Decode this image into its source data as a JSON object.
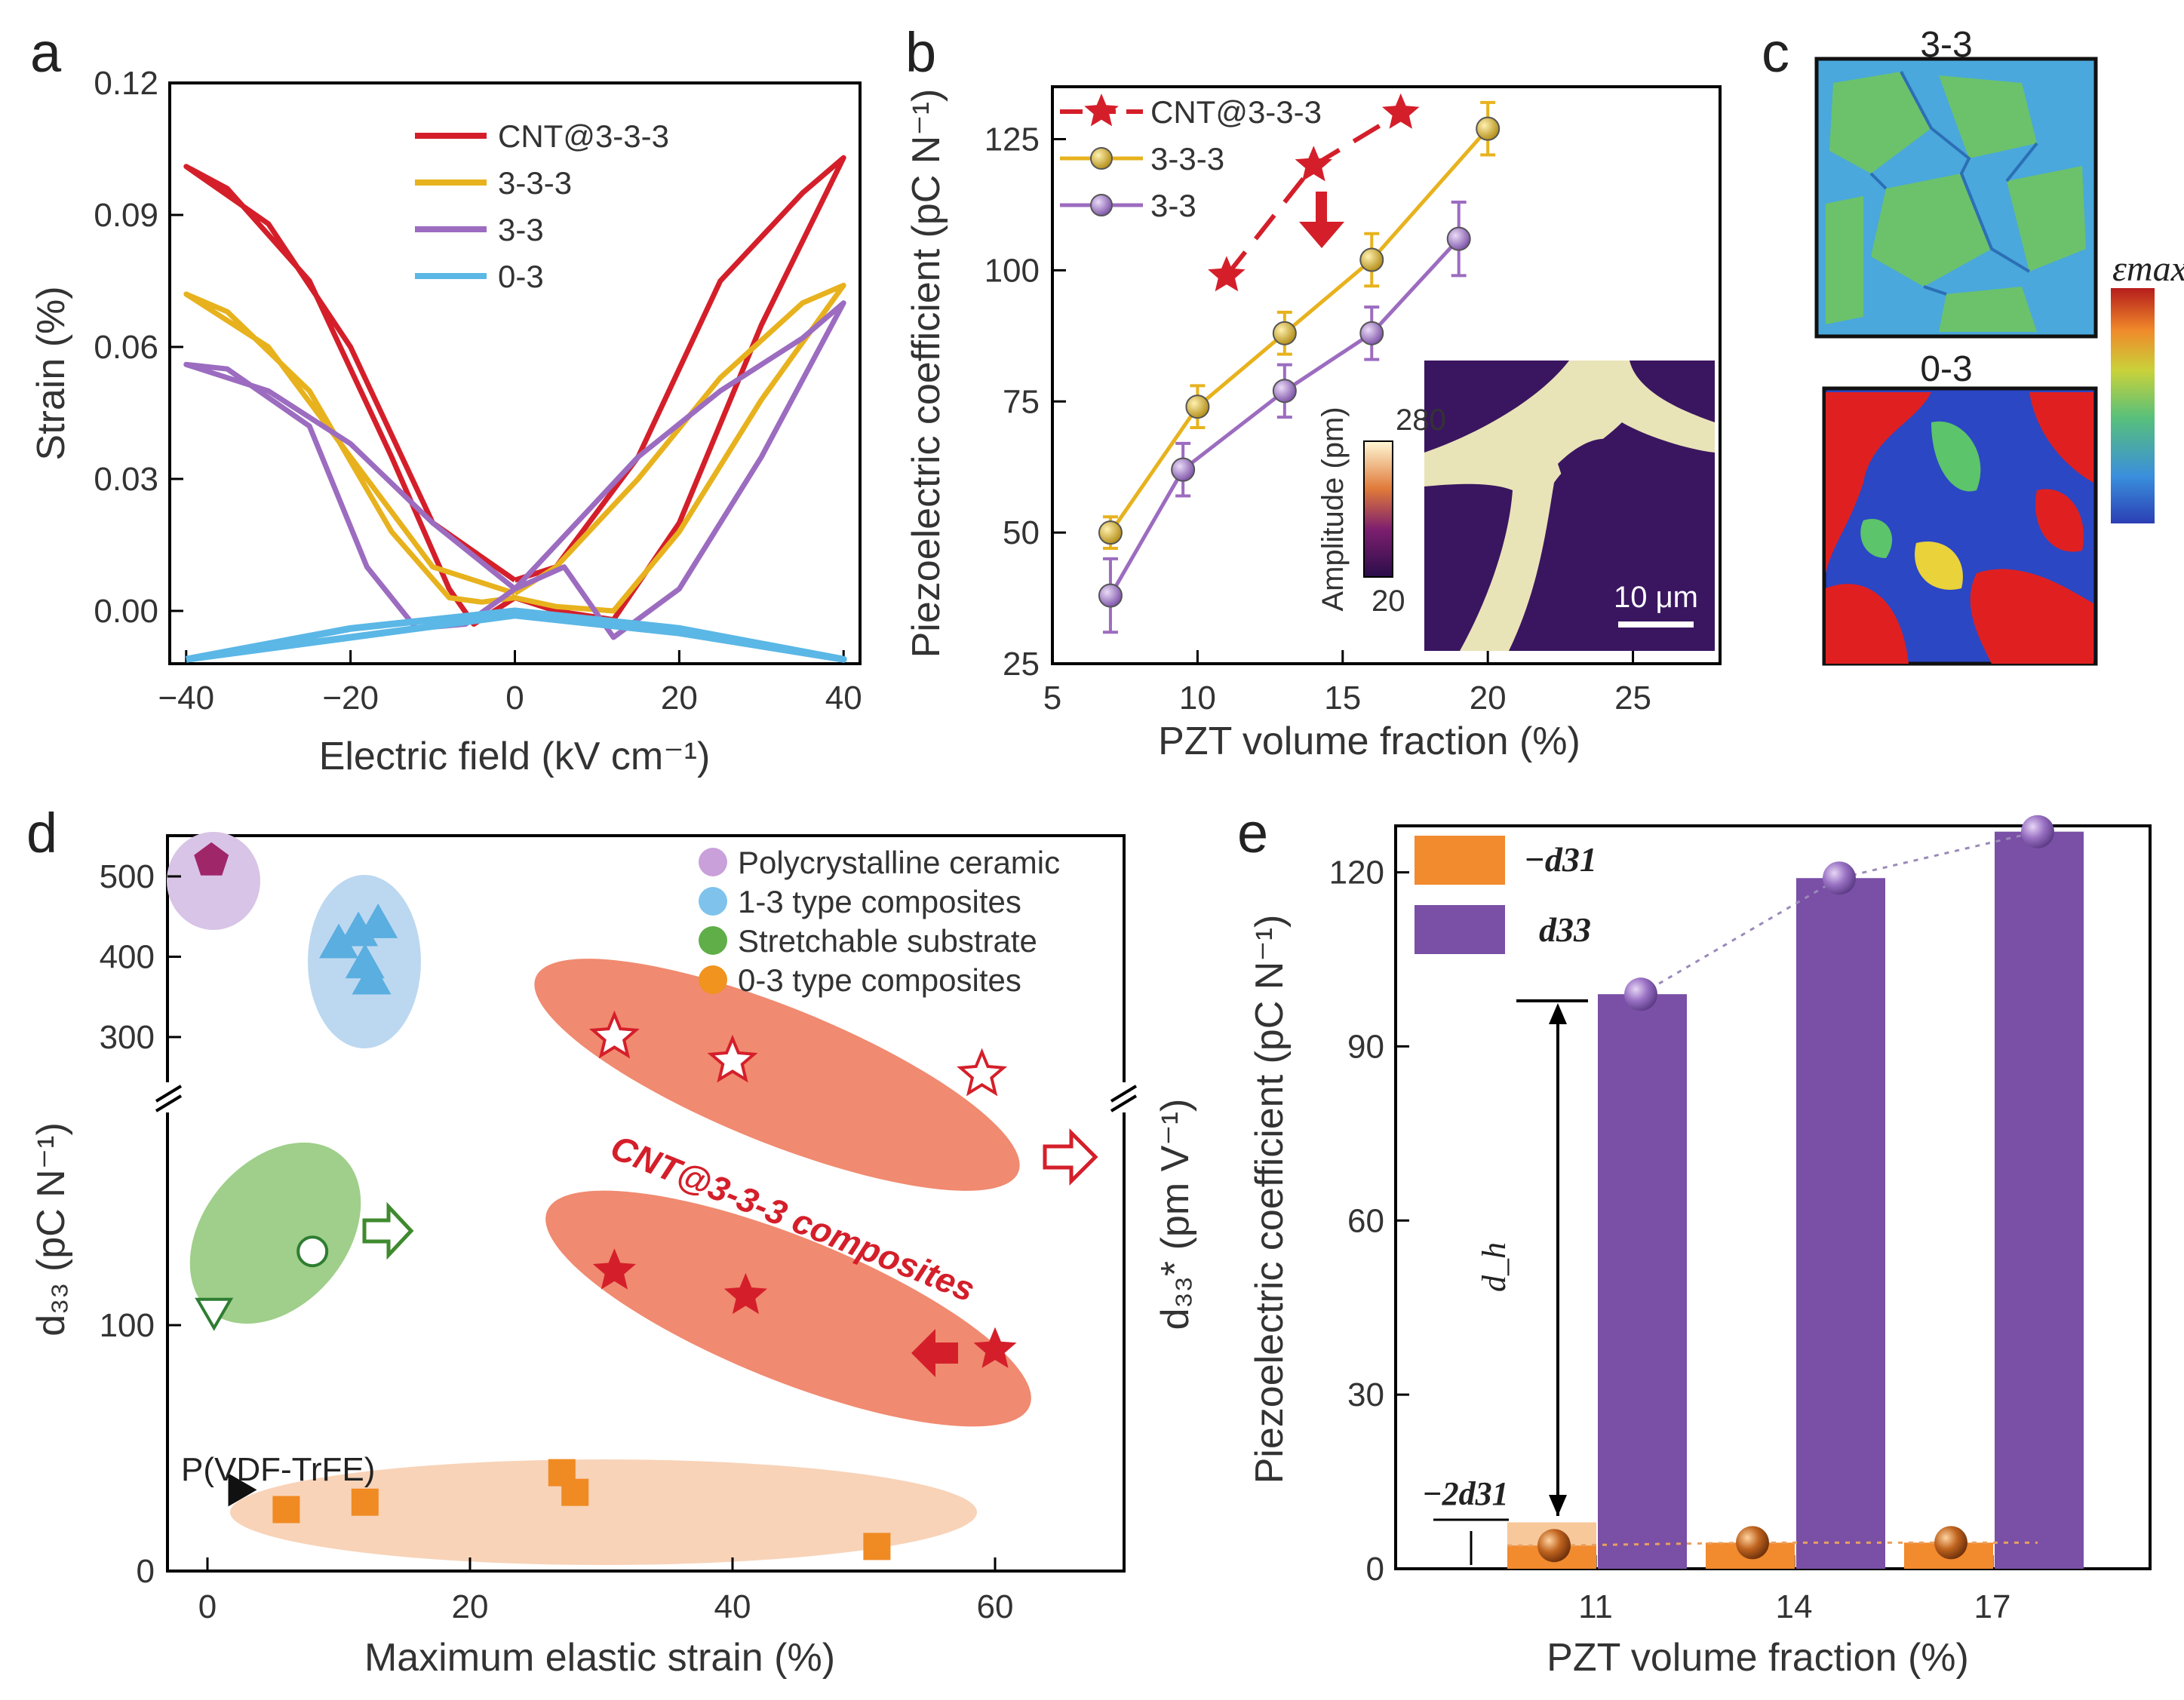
{
  "panel_labels": {
    "a": "a",
    "b": "b",
    "c": "c",
    "d": "d",
    "e": "e"
  },
  "colors": {
    "cnt": "#d41f2a",
    "t333": "#e7b21d",
    "t33": "#9c6cc0",
    "t03": "#5bb7e6",
    "bar_d31": "#f28a2e",
    "bar_d33": "#7a4fa6",
    "ell_poly": "#d8c4e6",
    "ell_13": "#bcd8f0",
    "ell_stretch": "#9fcf8a",
    "ell_cnt": "#f08a70",
    "ell_03": "#f8d3b8",
    "poly_marker": "#a0266a"
  },
  "chart_data": [
    {
      "panel": "a",
      "type": "line",
      "xlabel": "Electric field (kV cm⁻¹)",
      "ylabel": "Strain (%)",
      "xlim": [
        -40,
        40
      ],
      "ylim": [
        -0.012,
        0.12
      ],
      "xticks": [
        "−40",
        "−20",
        "0",
        "20",
        "40"
      ],
      "yticks": [
        "0.00",
        "0.03",
        "0.06",
        "0.09",
        "0.12"
      ],
      "legend": [
        "CNT@3-3-3",
        "3-3-3",
        "3-3",
        "0-3"
      ],
      "series": [
        {
          "name": "CNT@3-3-3",
          "color": "cnt",
          "points": [
            [
              0,
              0.007
            ],
            [
              -10,
              0.02
            ],
            [
              -20,
              0.06
            ],
            [
              -30,
              0.088
            ],
            [
              -40,
              0.101
            ],
            [
              -35,
              0.096
            ],
            [
              -25,
              0.075
            ],
            [
              -15,
              0.035
            ],
            [
              -8,
              0.005
            ],
            [
              -5,
              -0.003
            ],
            [
              0,
              0.003
            ],
            [
              5,
              0.0
            ],
            [
              12,
              -0.002
            ],
            [
              20,
              0.02
            ],
            [
              30,
              0.065
            ],
            [
              40,
              0.103
            ],
            [
              35,
              0.095
            ],
            [
              25,
              0.075
            ],
            [
              15,
              0.035
            ],
            [
              5,
              0.01
            ],
            [
              0,
              0.007
            ]
          ]
        },
        {
          "name": "3-3-3",
          "color": "t333",
          "points": [
            [
              0,
              0.004
            ],
            [
              -10,
              0.01
            ],
            [
              -20,
              0.035
            ],
            [
              -30,
              0.06
            ],
            [
              -40,
              0.072
            ],
            [
              -35,
              0.068
            ],
            [
              -25,
              0.05
            ],
            [
              -15,
              0.018
            ],
            [
              -8,
              0.003
            ],
            [
              -4,
              0.002
            ],
            [
              0,
              0.003
            ],
            [
              5,
              0.001
            ],
            [
              12,
              0.0
            ],
            [
              20,
              0.018
            ],
            [
              30,
              0.048
            ],
            [
              40,
              0.074
            ],
            [
              35,
              0.07
            ],
            [
              25,
              0.053
            ],
            [
              15,
              0.03
            ],
            [
              5,
              0.01
            ],
            [
              0,
              0.004
            ]
          ]
        },
        {
          "name": "3-3",
          "color": "t33",
          "points": [
            [
              0,
              0.005
            ],
            [
              -10,
              0.02
            ],
            [
              -20,
              0.038
            ],
            [
              -30,
              0.05
            ],
            [
              -40,
              0.056
            ],
            [
              -35,
              0.055
            ],
            [
              -25,
              0.042
            ],
            [
              -18,
              0.01
            ],
            [
              -12,
              -0.004
            ],
            [
              -6,
              -0.003
            ],
            [
              0,
              0.005
            ],
            [
              6,
              0.01
            ],
            [
              12,
              -0.006
            ],
            [
              20,
              0.005
            ],
            [
              30,
              0.035
            ],
            [
              40,
              0.07
            ],
            [
              35,
              0.062
            ],
            [
              25,
              0.05
            ],
            [
              15,
              0.035
            ],
            [
              5,
              0.015
            ],
            [
              0,
              0.005
            ]
          ]
        },
        {
          "name": "0-3",
          "color": "t03",
          "points": [
            [
              -40,
              -0.011
            ],
            [
              -20,
              -0.006
            ],
            [
              0,
              -0.001
            ],
            [
              20,
              -0.005
            ],
            [
              40,
              -0.011
            ],
            [
              20,
              -0.004
            ],
            [
              0,
              0.0
            ],
            [
              -20,
              -0.004
            ],
            [
              -40,
              -0.011
            ]
          ]
        }
      ]
    },
    {
      "panel": "b",
      "type": "scatter",
      "xlabel": "PZT volume fraction (%)",
      "ylabel": "Piezoelectric coefficient (pC N⁻¹)",
      "xlim": [
        5,
        28
      ],
      "ylim": [
        25,
        135
      ],
      "xticks": [
        "5",
        "10",
        "15",
        "20",
        "25"
      ],
      "yticks": [
        "25",
        "50",
        "75",
        "100",
        "125"
      ],
      "legend": [
        "CNT@3-3-3",
        "3-3-3",
        "3-3"
      ],
      "series": [
        {
          "name": "CNT@3-3-3",
          "color": "cnt",
          "x": [
            11,
            14,
            17
          ],
          "y": [
            99,
            120,
            130
          ]
        },
        {
          "name": "3-3-3",
          "color": "t333",
          "x": [
            7,
            10,
            13,
            16,
            20
          ],
          "y": [
            50,
            74,
            88,
            102,
            127
          ],
          "err": [
            3,
            4,
            4,
            5,
            5
          ]
        },
        {
          "name": "3-3",
          "color": "t33",
          "x": [
            7,
            9.5,
            13,
            16,
            19
          ],
          "y": [
            38,
            62,
            77,
            88,
            106
          ],
          "err": [
            7,
            5,
            5,
            5,
            7
          ]
        }
      ],
      "inset": {
        "cbar_label": "Amplitude (pm)",
        "cbar_max": "280",
        "cbar_min": "20",
        "scalebar": "10 μm"
      }
    },
    {
      "panel": "d",
      "type": "scatter",
      "xlabel": "Maximum elastic strain (%)",
      "ylabel": "d₃₃ (pC N⁻¹)",
      "ylabel_right": "d₃₃* (pm V⁻¹)",
      "xlim": [
        -3,
        70
      ],
      "xticks": [
        "0",
        "20",
        "40",
        "60"
      ],
      "yticks": [
        "0",
        "100",
        "300",
        "400",
        "500"
      ],
      "legend": [
        "Polycrystalline ceramic",
        "1-3 type composites",
        "Stretchable substrate",
        "0-3 type composites"
      ],
      "annotation": "CNT@3-3-3 composites",
      "annotation_pvdf": "P(VDF-TrFE)",
      "series": [
        {
          "name": "Polycrystalline ceramic",
          "x": [
            0.3
          ],
          "y": [
            520
          ]
        },
        {
          "name": "1-3 type composites",
          "x": [
            10,
            11.5,
            13,
            12,
            12.5
          ],
          "y": [
            415,
            430,
            440,
            390,
            370
          ]
        },
        {
          "name": "Stretchable substrate",
          "x": [
            0.5,
            8
          ],
          "y": [
            105,
            130
          ]
        },
        {
          "name": "0-3 type composites",
          "x": [
            6,
            12,
            27,
            28,
            51
          ],
          "y": [
            25,
            28,
            40,
            32,
            10
          ]
        },
        {
          "name": "P(VDF-TrFE)",
          "x": [
            2.5
          ],
          "y": [
            33
          ]
        },
        {
          "name": "CNT@3-3-3 d33*",
          "x": [
            31,
            40,
            59
          ],
          "y": [
            300,
            270,
            178
          ]
        },
        {
          "name": "CNT@3-3-3 d33",
          "x": [
            31,
            41,
            60
          ],
          "y": [
            122,
            112,
            90
          ]
        }
      ]
    },
    {
      "panel": "e",
      "type": "bar",
      "xlabel": "PZT volume fraction (%)",
      "ylabel": "Piezoelectric coefficient (pC N⁻¹)",
      "categories": [
        "11",
        "14",
        "17"
      ],
      "ylim": [
        0,
        128
      ],
      "yticks": [
        "0",
        "30",
        "60",
        "90",
        "120"
      ],
      "legend": [
        "−d31",
        "d33"
      ],
      "annot_dh": "d_h",
      "annot_2d31": "−2d31",
      "series": [
        {
          "name": "−d31",
          "values": [
            4,
            4.5,
            4.5
          ]
        },
        {
          "name": "d33",
          "values": [
            99,
            119,
            127
          ]
        }
      ]
    }
  ],
  "panel_c": {
    "label_top": "3-3",
    "label_bottom": "0-3",
    "cbar_label": "εmax"
  }
}
